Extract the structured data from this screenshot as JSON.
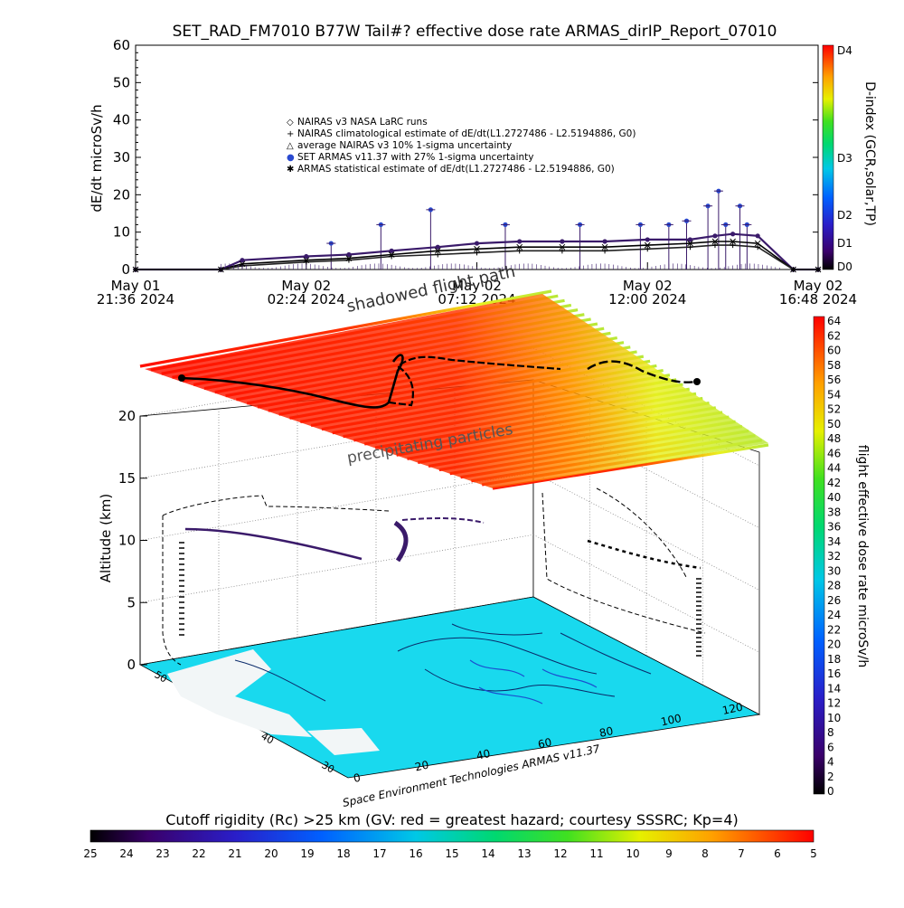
{
  "chart_data": [
    {
      "type": "line",
      "title": "SET_RAD_FM7010  B77W Tail#? effective dose rate ARMAS_dirIP_Report_07010",
      "ylabel": "dE/dt microSv/h",
      "ylim": [
        0,
        60
      ],
      "yticks": [
        "0",
        "10",
        "20",
        "30",
        "40",
        "50",
        "60"
      ],
      "xticks": [
        {
          "date": "May 01",
          "time": "21:36 2024"
        },
        {
          "date": "May 02",
          "time": "02:24 2024"
        },
        {
          "date": "May 02",
          "time": "07:12 2024"
        },
        {
          "date": "May 02",
          "time": "12:00 2024"
        },
        {
          "date": "May 02",
          "time": "16:48 2024"
        }
      ],
      "legend": [
        "NAIRAS v3 NASA LaRC runs",
        "NAIRAS climatological estimate of dE/dt(L1.2727486 - L2.5194886, G0)",
        "average NAIRAS v3 10% 1-sigma uncertainty",
        "SET ARMAS v11.37 with 27% 1-sigma uncertainty",
        "ARMAS statistical estimate of dE/dt(L1.2727486 - L2.5194886, G0)"
      ],
      "legend_placement": "upper-center",
      "x_hours": [
        0,
        2.4,
        3.0,
        4.8,
        6.0,
        7.2,
        8.5,
        9.6,
        10.8,
        12.0,
        13.2,
        14.4,
        15.6,
        16.3,
        16.8,
        17.5,
        18.5,
        19.2
      ],
      "series": [
        {
          "name": "SET ARMAS v11.37 with 27% 1-sigma uncertainty",
          "values": [
            0,
            0,
            2.5,
            3.5,
            4,
            5,
            6,
            7,
            7.5,
            7.5,
            7.5,
            8,
            8,
            9,
            9.5,
            9,
            0,
            0
          ],
          "spikes": [
            [
              5.5,
              7
            ],
            [
              6.9,
              12
            ],
            [
              8.3,
              16
            ],
            [
              10.4,
              12
            ],
            [
              12.5,
              12
            ],
            [
              14.2,
              12
            ],
            [
              15.0,
              12
            ],
            [
              15.5,
              13
            ],
            [
              16.1,
              17
            ],
            [
              16.4,
              21
            ],
            [
              16.6,
              12
            ],
            [
              17.0,
              17
            ],
            [
              17.2,
              12
            ]
          ]
        },
        {
          "name": "ARMAS statistical estimate of dE/dt(L1.2727486 - L2.5194886, G0)",
          "values": [
            0,
            0,
            1.5,
            2.5,
            3,
            4,
            5,
            5.5,
            6,
            6,
            6,
            6.5,
            7,
            7.5,
            7.5,
            7,
            0,
            0
          ]
        },
        {
          "name": "NAIRAS climatological estimate of dE/dt(L1.2727486 - L2.5194886, G0)",
          "values": [
            0,
            0,
            1,
            2,
            2.5,
            3.5,
            4,
            4.5,
            5,
            5,
            5,
            5.5,
            6,
            6.5,
            6.5,
            6,
            0,
            0
          ]
        }
      ],
      "right_axis": {
        "label": "D-index (GCR,solar,TP)",
        "ticks": [
          "D0",
          "D1",
          "D2",
          "D3",
          "D4"
        ]
      }
    },
    {
      "type": "scatter",
      "subtype": "3d flight path",
      "zlabel": "Altitude (km)",
      "zticks": [
        "0",
        "5",
        "10",
        "15",
        "20"
      ],
      "lat_ticks": [
        "30",
        "40",
        "50"
      ],
      "lon_ticks": [
        "0",
        "20",
        "40",
        "60",
        "80",
        "100",
        "120"
      ],
      "annotations": [
        "shadowed flight path",
        "precipitating particles"
      ],
      "credit": "Space Environment Technologies ARMAS v11.37",
      "colorbar": {
        "label": "flight effective dose rate microSv/h",
        "ticks": [
          "0",
          "2",
          "4",
          "6",
          "8",
          "10",
          "12",
          "14",
          "16",
          "18",
          "20",
          "22",
          "24",
          "26",
          "28",
          "30",
          "32",
          "34",
          "36",
          "38",
          "40",
          "42",
          "44",
          "46",
          "48",
          "50",
          "52",
          "54",
          "56",
          "58",
          "60",
          "62",
          "64"
        ]
      }
    }
  ],
  "cutoff_bar": {
    "title": "Cutoff rigidity (Rc) >25 km (GV: red = greatest hazard; courtesy SSSRC; Kp=4)",
    "ticks": [
      "25",
      "24",
      "23",
      "22",
      "21",
      "20",
      "19",
      "18",
      "17",
      "16",
      "15",
      "14",
      "13",
      "12",
      "11",
      "10",
      "9",
      "8",
      "7",
      "6",
      "5"
    ]
  },
  "colors": {
    "dose_path": "#3a1a6a",
    "armas_marker": "#2a4ad0",
    "ocean": "#19d9ee",
    "land": "#f2f6f7",
    "hot": "#ff1800",
    "cool": "#d8f020"
  }
}
